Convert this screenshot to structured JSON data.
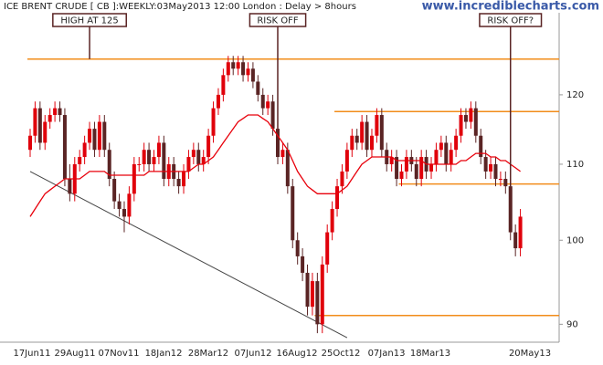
{
  "chart_data": {
    "type": "candlestick",
    "title": "ICE BRENT CRUDE [ CB ]:WEEKLY:03May2013 12:00 London : Delay > 8hours",
    "watermark": "www.incrediblecharts.com",
    "log_scale": true,
    "ylim": [
      88,
      133
    ],
    "yticks": [
      90,
      100,
      110,
      120
    ],
    "xticks": [
      "17Jun11",
      "29Aug11",
      "07Nov11",
      "18Jan12",
      "28Mar12",
      "07Jun12",
      "16Aug12",
      "25Oct12",
      "07Jan13",
      "18Mar13",
      "20May13"
    ],
    "up_color": "#e0000b",
    "down_color": "#5a2424",
    "ohlc": [
      [
        112,
        115,
        111,
        114
      ],
      [
        114,
        119,
        113,
        118
      ],
      [
        118,
        119,
        112,
        113
      ],
      [
        113,
        117,
        112,
        116
      ],
      [
        116,
        118,
        115,
        117
      ],
      [
        117,
        119,
        116,
        118
      ],
      [
        118,
        119,
        116,
        117
      ],
      [
        117,
        118,
        107,
        108
      ],
      [
        108,
        110,
        105,
        106
      ],
      [
        106,
        111,
        105,
        110
      ],
      [
        110,
        112,
        109,
        111
      ],
      [
        111,
        114,
        110,
        113
      ],
      [
        113,
        116,
        112,
        115
      ],
      [
        115,
        116,
        111,
        112
      ],
      [
        112,
        117,
        111,
        116
      ],
      [
        116,
        117,
        111,
        112
      ],
      [
        112,
        113,
        107,
        108
      ],
      [
        108,
        109,
        104,
        105
      ],
      [
        105,
        106,
        103,
        104
      ],
      [
        104,
        105,
        101,
        103
      ],
      [
        103,
        107,
        102,
        106
      ],
      [
        106,
        111,
        105,
        110
      ],
      [
        110,
        111,
        109,
        110
      ],
      [
        110,
        113,
        109,
        112
      ],
      [
        112,
        113,
        109,
        110
      ],
      [
        110,
        112,
        109,
        111
      ],
      [
        111,
        114,
        110,
        113
      ],
      [
        113,
        114,
        107,
        108
      ],
      [
        108,
        111,
        107,
        110
      ],
      [
        110,
        111,
        107,
        108
      ],
      [
        108,
        109,
        106,
        107
      ],
      [
        107,
        110,
        106,
        109
      ],
      [
        109,
        112,
        108,
        111
      ],
      [
        111,
        113,
        110,
        112
      ],
      [
        112,
        113,
        109,
        110
      ],
      [
        110,
        112,
        109,
        111
      ],
      [
        111,
        115,
        110,
        114
      ],
      [
        114,
        119,
        113,
        118
      ],
      [
        118,
        121,
        117,
        120
      ],
      [
        120,
        124,
        119,
        123
      ],
      [
        123,
        126,
        122,
        125
      ],
      [
        125,
        126,
        123,
        124
      ],
      [
        124,
        126,
        123,
        125
      ],
      [
        125,
        126,
        122,
        123
      ],
      [
        123,
        125,
        122,
        124
      ],
      [
        124,
        125,
        121,
        122
      ],
      [
        122,
        123,
        119,
        120
      ],
      [
        120,
        121,
        117,
        118
      ],
      [
        118,
        120,
        117,
        119
      ],
      [
        119,
        120,
        114,
        115
      ],
      [
        115,
        116,
        110,
        111
      ],
      [
        111,
        113,
        110,
        112
      ],
      [
        112,
        113,
        106,
        107
      ],
      [
        107,
        108,
        99,
        100
      ],
      [
        100,
        101,
        97,
        98
      ],
      [
        98,
        99,
        95,
        96
      ],
      [
        96,
        97,
        91,
        92
      ],
      [
        92,
        96,
        91,
        95
      ],
      [
        95,
        96,
        89,
        90
      ],
      [
        90,
        98,
        89,
        97
      ],
      [
        97,
        102,
        96,
        101
      ],
      [
        101,
        105,
        100,
        104
      ],
      [
        104,
        108,
        103,
        107
      ],
      [
        107,
        110,
        106,
        109
      ],
      [
        109,
        113,
        108,
        112
      ],
      [
        112,
        115,
        111,
        114
      ],
      [
        114,
        115,
        112,
        113
      ],
      [
        113,
        117,
        112,
        116
      ],
      [
        116,
        117,
        111,
        112
      ],
      [
        112,
        115,
        111,
        114
      ],
      [
        114,
        118,
        113,
        117
      ],
      [
        117,
        118,
        111,
        112
      ],
      [
        112,
        113,
        109,
        110
      ],
      [
        110,
        112,
        109,
        111
      ],
      [
        111,
        112,
        107,
        108
      ],
      [
        108,
        110,
        107,
        109
      ],
      [
        109,
        112,
        108,
        111
      ],
      [
        111,
        112,
        109,
        110
      ],
      [
        110,
        111,
        107,
        108
      ],
      [
        108,
        112,
        107,
        111
      ],
      [
        111,
        112,
        108,
        109
      ],
      [
        109,
        111,
        108,
        110
      ],
      [
        110,
        113,
        109,
        112
      ],
      [
        112,
        114,
        111,
        113
      ],
      [
        113,
        114,
        109,
        110
      ],
      [
        110,
        113,
        109,
        112
      ],
      [
        112,
        115,
        111,
        114
      ],
      [
        114,
        118,
        113,
        117
      ],
      [
        117,
        118,
        115,
        116
      ],
      [
        116,
        119,
        115,
        118
      ],
      [
        118,
        119,
        113,
        114
      ],
      [
        114,
        115,
        110,
        111
      ],
      [
        111,
        112,
        108,
        109
      ],
      [
        109,
        111,
        108,
        110
      ],
      [
        110,
        111,
        107,
        108
      ],
      [
        108,
        109,
        107,
        108
      ],
      [
        108,
        109,
        106,
        107
      ],
      [
        107,
        108,
        100,
        101
      ],
      [
        101,
        102,
        98,
        99
      ],
      [
        99,
        104,
        98,
        103
      ]
    ],
    "ma": {
      "color": "#e8000b",
      "values": [
        103,
        104,
        105,
        106,
        106.5,
        107,
        107.5,
        108,
        108,
        108,
        108,
        108.5,
        109,
        109,
        109,
        109,
        108.5,
        108.5,
        108.5,
        108.5,
        108.5,
        108.5,
        108.5,
        108.5,
        109,
        109,
        109,
        109,
        109,
        109,
        109,
        109,
        109,
        109.5,
        110,
        110,
        110.5,
        111,
        112,
        113,
        114,
        115,
        116,
        116.5,
        117,
        117,
        117,
        116.5,
        116,
        115,
        114,
        113,
        112,
        110.5,
        109,
        108,
        107,
        106.5,
        106,
        106,
        106,
        106,
        106,
        106.5,
        107,
        108,
        109,
        110,
        110.5,
        111,
        111,
        111,
        111,
        111,
        110.5,
        110.5,
        110.5,
        110.5,
        110.5,
        110.5,
        110,
        110,
        110,
        110,
        110,
        110,
        110,
        110.5,
        110.5,
        111,
        111.5,
        111.5,
        111.5,
        111,
        111,
        110.5,
        110.5,
        110,
        109.5,
        109
      ]
    },
    "levels": [
      {
        "value": 125.5,
        "from": 0
      },
      {
        "value": 117.5,
        "from": 62
      },
      {
        "value": 107.3,
        "from": 75
      },
      {
        "value": 91,
        "from": 58
      }
    ],
    "level_color": "#f28c1a",
    "trendline": {
      "color": "#444444",
      "points": [
        [
          0,
          109
        ],
        [
          64,
          88.5
        ]
      ]
    },
    "callouts": [
      {
        "text": "HIGH AT 125",
        "at": 12,
        "value": 125.5
      },
      {
        "text": "RISK OFF",
        "at": 50,
        "value": 115
      },
      {
        "text": "RISK OFF?",
        "at": 97,
        "value": 107
      }
    ]
  }
}
